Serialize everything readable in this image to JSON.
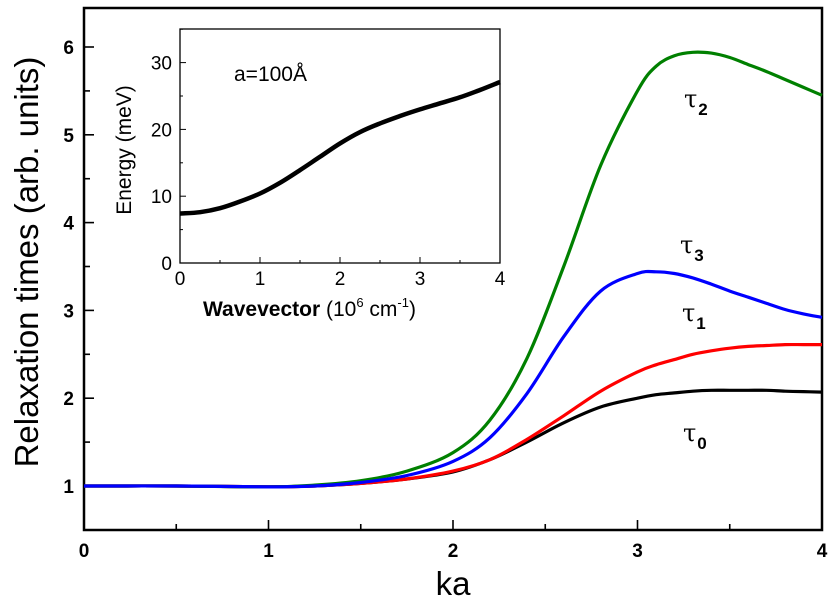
{
  "chart_data": [
    {
      "type": "line",
      "title": "",
      "xlabel": "ka",
      "ylabel": "Relaxation times (arb. units)",
      "xlim": [
        0,
        4
      ],
      "ylim": [
        0.5,
        6.45
      ],
      "xticks": [
        "0",
        "1",
        "2",
        "3",
        "4"
      ],
      "yticks": [
        "1",
        "2",
        "3",
        "4",
        "5",
        "6"
      ],
      "grid": false,
      "legend": "inline labels",
      "x": [
        0,
        0.5,
        1.0,
        1.25,
        1.5,
        1.75,
        2.0,
        2.2,
        2.4,
        2.6,
        2.8,
        3.0,
        3.1,
        3.2,
        3.3,
        3.4,
        3.5,
        3.6,
        3.7,
        3.8,
        3.9,
        4.0
      ],
      "series": [
        {
          "name": "τ0",
          "label_main": "τ",
          "label_sub": "0",
          "color": "#000000",
          "values": [
            1.0,
            1.0,
            0.99,
            1.0,
            1.03,
            1.08,
            1.16,
            1.3,
            1.5,
            1.72,
            1.9,
            2.0,
            2.04,
            2.06,
            2.08,
            2.09,
            2.09,
            2.09,
            2.09,
            2.08,
            2.075,
            2.07
          ]
        },
        {
          "name": "τ1",
          "label_main": "τ",
          "label_sub": "1",
          "color": "#ff0000",
          "values": [
            1.0,
            1.0,
            0.99,
            1.0,
            1.03,
            1.08,
            1.17,
            1.3,
            1.53,
            1.8,
            2.08,
            2.3,
            2.38,
            2.44,
            2.5,
            2.54,
            2.57,
            2.59,
            2.6,
            2.61,
            2.61,
            2.61
          ]
        },
        {
          "name": "τ2",
          "label_main": "τ",
          "label_sub": "2",
          "color": "#008000",
          "values": [
            1.0,
            1.0,
            0.99,
            1.01,
            1.06,
            1.17,
            1.38,
            1.75,
            2.45,
            3.5,
            4.65,
            5.5,
            5.78,
            5.9,
            5.94,
            5.93,
            5.88,
            5.8,
            5.72,
            5.63,
            5.54,
            5.45
          ]
        },
        {
          "name": "τ3",
          "label_main": "τ",
          "label_sub": "3",
          "color": "#0000ff",
          "values": [
            1.0,
            1.0,
            0.99,
            1.0,
            1.04,
            1.12,
            1.28,
            1.55,
            2.05,
            2.7,
            3.22,
            3.42,
            3.44,
            3.42,
            3.37,
            3.3,
            3.22,
            3.15,
            3.08,
            3.01,
            2.96,
            2.92
          ]
        }
      ]
    },
    {
      "type": "line",
      "title": "",
      "xlabel_bold": "Wavevector",
      "xlabel_rest": " (10",
      "xlabel_sup1": "6",
      "xlabel_mid": " cm",
      "xlabel_sup2": "-1",
      "xlabel_end": ")",
      "ylabel": "Energy (meV)",
      "xlim": [
        0,
        4
      ],
      "ylim": [
        0,
        35
      ],
      "xticks": [
        "0",
        "1",
        "2",
        "3",
        "4"
      ],
      "yticks": [
        "0",
        "10",
        "20",
        "30"
      ],
      "annotation": "a=100Å",
      "grid": false,
      "x": [
        0,
        0.25,
        0.5,
        0.75,
        1.0,
        1.25,
        1.5,
        1.75,
        2.0,
        2.25,
        2.5,
        2.75,
        3.0,
        3.25,
        3.5,
        3.75,
        4.0
      ],
      "series": [
        {
          "name": "dispersion",
          "color": "#000000",
          "values": [
            7.4,
            7.6,
            8.2,
            9.2,
            10.4,
            12.0,
            13.9,
            15.9,
            17.9,
            19.6,
            20.9,
            22.0,
            23.0,
            23.9,
            24.8,
            25.9,
            27.1
          ]
        }
      ]
    }
  ]
}
